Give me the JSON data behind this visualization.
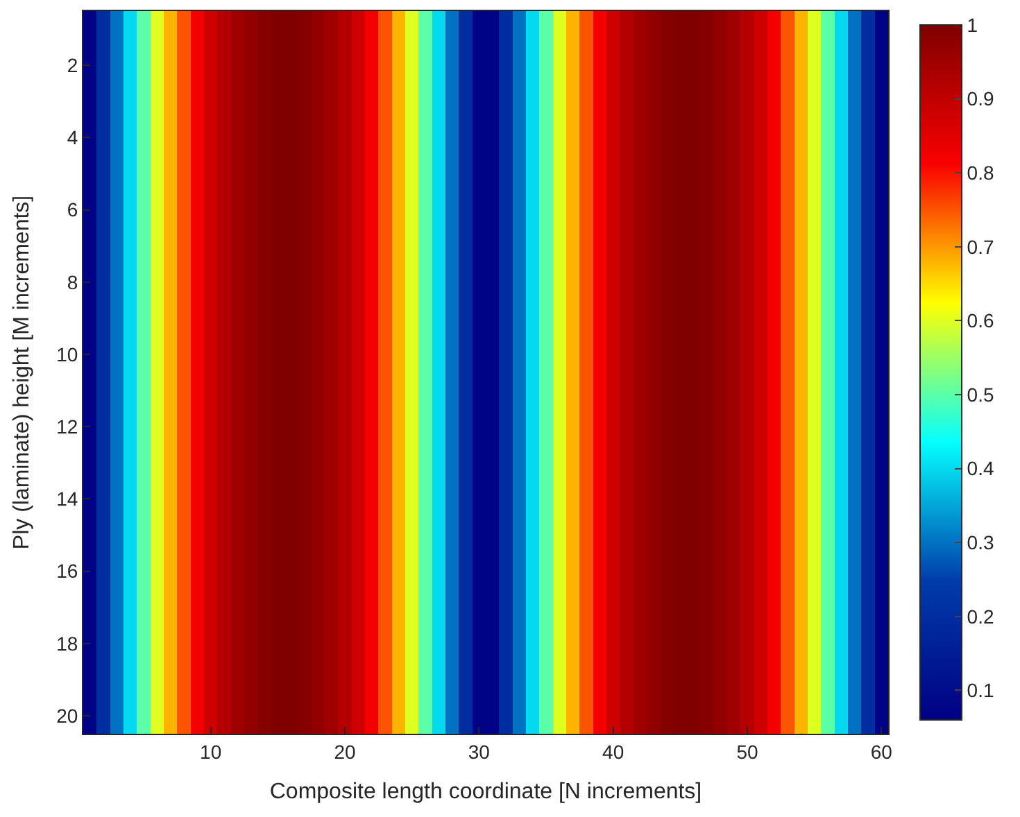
{
  "chart_data": {
    "type": "heatmap",
    "xlabel": "Composite length coordinate [N increments]",
    "ylabel": "Ply (laminate) height [M increments]",
    "x": [
      1,
      2,
      3,
      4,
      5,
      6,
      7,
      8,
      9,
      10,
      11,
      12,
      13,
      14,
      15,
      16,
      17,
      18,
      19,
      20,
      21,
      22,
      23,
      24,
      25,
      26,
      27,
      28,
      29,
      30,
      31,
      32,
      33,
      34,
      35,
      36,
      37,
      38,
      39,
      40,
      41,
      42,
      43,
      44,
      45,
      46,
      47,
      48,
      49,
      50,
      51,
      52,
      53,
      54,
      55,
      56,
      57,
      58,
      59,
      60
    ],
    "cells": [
      [
        0.07,
        0.2,
        0.3,
        0.4,
        0.5,
        0.6,
        0.68,
        0.75,
        0.82,
        0.88,
        0.92,
        0.95,
        0.97,
        0.99,
        1,
        1,
        0.99,
        0.97,
        0.95,
        0.92,
        0.88,
        0.82,
        0.75,
        0.68,
        0.6,
        0.5,
        0.4,
        0.3,
        0.2,
        0.07,
        0.07,
        0.2,
        0.3,
        0.4,
        0.5,
        0.6,
        0.68,
        0.75,
        0.82,
        0.88,
        0.92,
        0.95,
        0.97,
        0.99,
        1,
        1,
        0.99,
        0.97,
        0.95,
        0.92,
        0.88,
        0.82,
        0.75,
        0.68,
        0.6,
        0.5,
        0.4,
        0.3,
        0.2,
        0.07
      ],
      [
        0.07,
        0.2,
        0.3,
        0.4,
        0.5,
        0.6,
        0.68,
        0.75,
        0.82,
        0.88,
        0.92,
        0.95,
        0.97,
        0.99,
        1,
        1,
        0.99,
        0.97,
        0.95,
        0.92,
        0.88,
        0.82,
        0.75,
        0.68,
        0.6,
        0.5,
        0.4,
        0.3,
        0.2,
        0.07,
        0.07,
        0.2,
        0.3,
        0.4,
        0.5,
        0.6,
        0.68,
        0.75,
        0.82,
        0.88,
        0.92,
        0.95,
        0.97,
        0.99,
        1,
        1,
        0.99,
        0.97,
        0.95,
        0.92,
        0.88,
        0.82,
        0.75,
        0.68,
        0.6,
        0.5,
        0.4,
        0.3,
        0.2,
        0.07
      ],
      [
        0.07,
        0.2,
        0.3,
        0.4,
        0.5,
        0.6,
        0.68,
        0.75,
        0.82,
        0.88,
        0.92,
        0.95,
        0.97,
        0.99,
        1,
        1,
        0.99,
        0.97,
        0.95,
        0.92,
        0.88,
        0.82,
        0.75,
        0.68,
        0.6,
        0.5,
        0.4,
        0.3,
        0.2,
        0.07,
        0.07,
        0.2,
        0.3,
        0.4,
        0.5,
        0.6,
        0.68,
        0.75,
        0.82,
        0.88,
        0.92,
        0.95,
        0.97,
        0.99,
        1,
        1,
        0.99,
        0.97,
        0.95,
        0.92,
        0.88,
        0.82,
        0.75,
        0.68,
        0.6,
        0.5,
        0.4,
        0.3,
        0.2,
        0.07
      ],
      [
        0.07,
        0.2,
        0.3,
        0.4,
        0.5,
        0.6,
        0.68,
        0.75,
        0.82,
        0.88,
        0.92,
        0.95,
        0.97,
        0.99,
        1,
        1,
        0.99,
        0.97,
        0.95,
        0.92,
        0.88,
        0.82,
        0.75,
        0.68,
        0.6,
        0.5,
        0.4,
        0.3,
        0.2,
        0.07,
        0.07,
        0.2,
        0.3,
        0.4,
        0.5,
        0.6,
        0.68,
        0.75,
        0.82,
        0.88,
        0.92,
        0.95,
        0.97,
        0.99,
        1,
        1,
        0.99,
        0.97,
        0.95,
        0.92,
        0.88,
        0.82,
        0.75,
        0.68,
        0.6,
        0.5,
        0.4,
        0.3,
        0.2,
        0.07
      ],
      [
        0.07,
        0.2,
        0.3,
        0.4,
        0.5,
        0.6,
        0.68,
        0.75,
        0.82,
        0.88,
        0.92,
        0.95,
        0.97,
        0.99,
        1,
        1,
        0.99,
        0.97,
        0.95,
        0.92,
        0.88,
        0.82,
        0.75,
        0.68,
        0.6,
        0.5,
        0.4,
        0.3,
        0.2,
        0.07,
        0.07,
        0.2,
        0.3,
        0.4,
        0.5,
        0.6,
        0.68,
        0.75,
        0.82,
        0.88,
        0.92,
        0.95,
        0.97,
        0.99,
        1,
        1,
        0.99,
        0.97,
        0.95,
        0.92,
        0.88,
        0.82,
        0.75,
        0.68,
        0.6,
        0.5,
        0.4,
        0.3,
        0.2,
        0.07
      ],
      [
        0.07,
        0.2,
        0.3,
        0.4,
        0.5,
        0.6,
        0.68,
        0.75,
        0.82,
        0.88,
        0.92,
        0.95,
        0.97,
        0.99,
        1,
        1,
        0.99,
        0.97,
        0.95,
        0.92,
        0.88,
        0.82,
        0.75,
        0.68,
        0.6,
        0.5,
        0.4,
        0.3,
        0.2,
        0.07,
        0.07,
        0.2,
        0.3,
        0.4,
        0.5,
        0.6,
        0.68,
        0.75,
        0.82,
        0.88,
        0.92,
        0.95,
        0.97,
        0.99,
        1,
        1,
        0.99,
        0.97,
        0.95,
        0.92,
        0.88,
        0.82,
        0.75,
        0.68,
        0.6,
        0.5,
        0.4,
        0.3,
        0.2,
        0.07
      ],
      [
        0.07,
        0.2,
        0.3,
        0.4,
        0.5,
        0.6,
        0.68,
        0.75,
        0.82,
        0.88,
        0.92,
        0.95,
        0.97,
        0.99,
        1,
        1,
        0.99,
        0.97,
        0.95,
        0.92,
        0.88,
        0.82,
        0.75,
        0.68,
        0.6,
        0.5,
        0.4,
        0.3,
        0.2,
        0.07,
        0.07,
        0.2,
        0.3,
        0.4,
        0.5,
        0.6,
        0.68,
        0.75,
        0.82,
        0.88,
        0.92,
        0.95,
        0.97,
        0.99,
        1,
        1,
        0.99,
        0.97,
        0.95,
        0.92,
        0.88,
        0.82,
        0.75,
        0.68,
        0.6,
        0.5,
        0.4,
        0.3,
        0.2,
        0.07
      ],
      [
        0.07,
        0.2,
        0.3,
        0.4,
        0.5,
        0.6,
        0.68,
        0.75,
        0.82,
        0.88,
        0.92,
        0.95,
        0.97,
        0.99,
        1,
        1,
        0.99,
        0.97,
        0.95,
        0.92,
        0.88,
        0.82,
        0.75,
        0.68,
        0.6,
        0.5,
        0.4,
        0.3,
        0.2,
        0.07,
        0.07,
        0.2,
        0.3,
        0.4,
        0.5,
        0.6,
        0.68,
        0.75,
        0.82,
        0.88,
        0.92,
        0.95,
        0.97,
        0.99,
        1,
        1,
        0.99,
        0.97,
        0.95,
        0.92,
        0.88,
        0.82,
        0.75,
        0.68,
        0.6,
        0.5,
        0.4,
        0.3,
        0.2,
        0.07
      ],
      [
        0.07,
        0.2,
        0.3,
        0.4,
        0.5,
        0.6,
        0.68,
        0.75,
        0.82,
        0.88,
        0.92,
        0.95,
        0.97,
        0.99,
        1,
        1,
        0.99,
        0.97,
        0.95,
        0.92,
        0.88,
        0.82,
        0.75,
        0.68,
        0.6,
        0.5,
        0.4,
        0.3,
        0.2,
        0.07,
        0.07,
        0.2,
        0.3,
        0.4,
        0.5,
        0.6,
        0.68,
        0.75,
        0.82,
        0.88,
        0.92,
        0.95,
        0.97,
        0.99,
        1,
        1,
        0.99,
        0.97,
        0.95,
        0.92,
        0.88,
        0.82,
        0.75,
        0.68,
        0.6,
        0.5,
        0.4,
        0.3,
        0.2,
        0.07
      ],
      [
        0.07,
        0.2,
        0.3,
        0.4,
        0.5,
        0.6,
        0.68,
        0.75,
        0.82,
        0.88,
        0.92,
        0.95,
        0.97,
        0.99,
        1,
        1,
        0.99,
        0.97,
        0.95,
        0.92,
        0.88,
        0.82,
        0.75,
        0.68,
        0.6,
        0.5,
        0.4,
        0.3,
        0.2,
        0.07,
        0.07,
        0.2,
        0.3,
        0.4,
        0.5,
        0.6,
        0.68,
        0.75,
        0.82,
        0.88,
        0.92,
        0.95,
        0.97,
        0.99,
        1,
        1,
        0.99,
        0.97,
        0.95,
        0.92,
        0.88,
        0.82,
        0.75,
        0.68,
        0.6,
        0.5,
        0.4,
        0.3,
        0.2,
        0.07
      ],
      [
        0.07,
        0.2,
        0.3,
        0.4,
        0.5,
        0.6,
        0.68,
        0.75,
        0.82,
        0.88,
        0.92,
        0.95,
        0.97,
        0.99,
        1,
        1,
        0.99,
        0.97,
        0.95,
        0.92,
        0.88,
        0.82,
        0.75,
        0.68,
        0.6,
        0.5,
        0.4,
        0.3,
        0.2,
        0.07,
        0.07,
        0.2,
        0.3,
        0.4,
        0.5,
        0.6,
        0.68,
        0.75,
        0.82,
        0.88,
        0.92,
        0.95,
        0.97,
        0.99,
        1,
        1,
        0.99,
        0.97,
        0.95,
        0.92,
        0.88,
        0.82,
        0.75,
        0.68,
        0.6,
        0.5,
        0.4,
        0.3,
        0.2,
        0.07
      ],
      [
        0.07,
        0.2,
        0.3,
        0.4,
        0.5,
        0.6,
        0.68,
        0.75,
        0.82,
        0.88,
        0.92,
        0.95,
        0.97,
        0.99,
        1,
        1,
        0.99,
        0.97,
        0.95,
        0.92,
        0.88,
        0.82,
        0.75,
        0.68,
        0.6,
        0.5,
        0.4,
        0.3,
        0.2,
        0.07,
        0.07,
        0.2,
        0.3,
        0.4,
        0.5,
        0.6,
        0.68,
        0.75,
        0.82,
        0.88,
        0.92,
        0.95,
        0.97,
        0.99,
        1,
        1,
        0.99,
        0.97,
        0.95,
        0.92,
        0.88,
        0.82,
        0.75,
        0.68,
        0.6,
        0.5,
        0.4,
        0.3,
        0.2,
        0.07
      ],
      [
        0.07,
        0.2,
        0.3,
        0.4,
        0.5,
        0.6,
        0.68,
        0.75,
        0.82,
        0.88,
        0.92,
        0.95,
        0.97,
        0.99,
        1,
        1,
        0.99,
        0.97,
        0.95,
        0.92,
        0.88,
        0.82,
        0.75,
        0.68,
        0.6,
        0.5,
        0.4,
        0.3,
        0.2,
        0.07,
        0.07,
        0.2,
        0.3,
        0.4,
        0.5,
        0.6,
        0.68,
        0.75,
        0.82,
        0.88,
        0.92,
        0.95,
        0.97,
        0.99,
        1,
        1,
        0.99,
        0.97,
        0.95,
        0.92,
        0.88,
        0.82,
        0.75,
        0.68,
        0.6,
        0.5,
        0.4,
        0.3,
        0.2,
        0.07
      ],
      [
        0.07,
        0.2,
        0.3,
        0.4,
        0.5,
        0.6,
        0.68,
        0.75,
        0.82,
        0.88,
        0.92,
        0.95,
        0.97,
        0.99,
        1,
        1,
        0.99,
        0.97,
        0.95,
        0.92,
        0.88,
        0.82,
        0.75,
        0.68,
        0.6,
        0.5,
        0.4,
        0.3,
        0.2,
        0.07,
        0.07,
        0.2,
        0.3,
        0.4,
        0.5,
        0.6,
        0.68,
        0.75,
        0.82,
        0.88,
        0.92,
        0.95,
        0.97,
        0.99,
        1,
        1,
        0.99,
        0.97,
        0.95,
        0.92,
        0.88,
        0.82,
        0.75,
        0.68,
        0.6,
        0.5,
        0.4,
        0.3,
        0.2,
        0.07
      ],
      [
        0.07,
        0.2,
        0.3,
        0.4,
        0.5,
        0.6,
        0.68,
        0.75,
        0.82,
        0.88,
        0.92,
        0.95,
        0.97,
        0.99,
        1,
        1,
        0.99,
        0.97,
        0.95,
        0.92,
        0.88,
        0.82,
        0.75,
        0.68,
        0.6,
        0.5,
        0.4,
        0.3,
        0.2,
        0.07,
        0.07,
        0.2,
        0.3,
        0.4,
        0.5,
        0.6,
        0.68,
        0.75,
        0.82,
        0.88,
        0.92,
        0.95,
        0.97,
        0.99,
        1,
        1,
        0.99,
        0.97,
        0.95,
        0.92,
        0.88,
        0.82,
        0.75,
        0.68,
        0.6,
        0.5,
        0.4,
        0.3,
        0.2,
        0.07
      ],
      [
        0.07,
        0.2,
        0.3,
        0.4,
        0.5,
        0.6,
        0.68,
        0.75,
        0.82,
        0.88,
        0.92,
        0.95,
        0.97,
        0.99,
        1,
        1,
        0.99,
        0.97,
        0.95,
        0.92,
        0.88,
        0.82,
        0.75,
        0.68,
        0.6,
        0.5,
        0.4,
        0.3,
        0.2,
        0.07,
        0.07,
        0.2,
        0.3,
        0.4,
        0.5,
        0.6,
        0.68,
        0.75,
        0.82,
        0.88,
        0.92,
        0.95,
        0.97,
        0.99,
        1,
        1,
        0.99,
        0.97,
        0.95,
        0.92,
        0.88,
        0.82,
        0.75,
        0.68,
        0.6,
        0.5,
        0.4,
        0.3,
        0.2,
        0.07
      ],
      [
        0.07,
        0.2,
        0.3,
        0.4,
        0.5,
        0.6,
        0.68,
        0.75,
        0.82,
        0.88,
        0.92,
        0.95,
        0.97,
        0.99,
        1,
        1,
        0.99,
        0.97,
        0.95,
        0.92,
        0.88,
        0.82,
        0.75,
        0.68,
        0.6,
        0.5,
        0.4,
        0.3,
        0.2,
        0.07,
        0.07,
        0.2,
        0.3,
        0.4,
        0.5,
        0.6,
        0.68,
        0.75,
        0.82,
        0.88,
        0.92,
        0.95,
        0.97,
        0.99,
        1,
        1,
        0.99,
        0.97,
        0.95,
        0.92,
        0.88,
        0.82,
        0.75,
        0.68,
        0.6,
        0.5,
        0.4,
        0.3,
        0.2,
        0.07
      ],
      [
        0.07,
        0.2,
        0.3,
        0.4,
        0.5,
        0.6,
        0.68,
        0.75,
        0.82,
        0.88,
        0.92,
        0.95,
        0.97,
        0.99,
        1,
        1,
        0.99,
        0.97,
        0.95,
        0.92,
        0.88,
        0.82,
        0.75,
        0.68,
        0.6,
        0.5,
        0.4,
        0.3,
        0.2,
        0.07,
        0.07,
        0.2,
        0.3,
        0.4,
        0.5,
        0.6,
        0.68,
        0.75,
        0.82,
        0.88,
        0.92,
        0.95,
        0.97,
        0.99,
        1,
        1,
        0.99,
        0.97,
        0.95,
        0.92,
        0.88,
        0.82,
        0.75,
        0.68,
        0.6,
        0.5,
        0.4,
        0.3,
        0.2,
        0.07
      ],
      [
        0.07,
        0.2,
        0.3,
        0.4,
        0.5,
        0.6,
        0.68,
        0.75,
        0.82,
        0.88,
        0.92,
        0.95,
        0.97,
        0.99,
        1,
        1,
        0.99,
        0.97,
        0.95,
        0.92,
        0.88,
        0.82,
        0.75,
        0.68,
        0.6,
        0.5,
        0.4,
        0.3,
        0.2,
        0.07,
        0.07,
        0.2,
        0.3,
        0.4,
        0.5,
        0.6,
        0.68,
        0.75,
        0.82,
        0.88,
        0.92,
        0.95,
        0.97,
        0.99,
        1,
        1,
        0.99,
        0.97,
        0.95,
        0.92,
        0.88,
        0.82,
        0.75,
        0.68,
        0.6,
        0.5,
        0.4,
        0.3,
        0.2,
        0.07
      ],
      [
        0.07,
        0.2,
        0.3,
        0.4,
        0.5,
        0.6,
        0.68,
        0.75,
        0.82,
        0.88,
        0.92,
        0.95,
        0.97,
        0.99,
        1,
        1,
        0.99,
        0.97,
        0.95,
        0.92,
        0.88,
        0.82,
        0.75,
        0.68,
        0.6,
        0.5,
        0.4,
        0.3,
        0.2,
        0.07,
        0.07,
        0.2,
        0.3,
        0.4,
        0.5,
        0.6,
        0.68,
        0.75,
        0.82,
        0.88,
        0.92,
        0.95,
        0.97,
        0.99,
        1,
        1,
        0.99,
        0.97,
        0.95,
        0.92,
        0.88,
        0.82,
        0.75,
        0.68,
        0.6,
        0.5,
        0.4,
        0.3,
        0.2,
        0.07
      ]
    ],
    "xlim": [
      0.5,
      60.5
    ],
    "xticks": [
      10,
      20,
      30,
      40,
      50,
      60
    ],
    "ylim": [
      20.5,
      0.5
    ],
    "yticks": [
      2,
      4,
      6,
      8,
      10,
      12,
      14,
      16,
      18,
      20
    ],
    "clim": [
      0.06,
      1
    ],
    "cticks": [
      0.1,
      0.2,
      0.3,
      0.4,
      0.5,
      0.6,
      0.7,
      0.8,
      0.9,
      1
    ]
  }
}
